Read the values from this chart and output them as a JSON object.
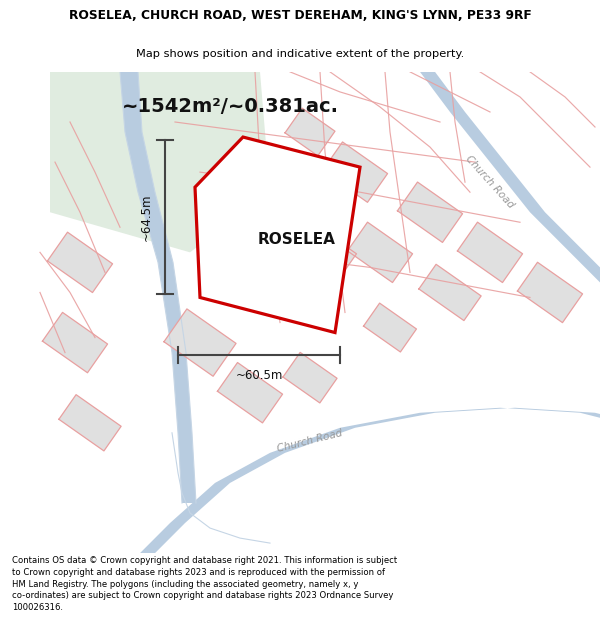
{
  "title_line1": "ROSELEA, CHURCH ROAD, WEST DEREHAM, KING'S LYNN, PE33 9RF",
  "title_line2": "Map shows position and indicative extent of the property.",
  "area_text": "~1542m²/~0.381ac.",
  "property_label": "ROSELEA",
  "dim_vertical": "~64.5m",
  "dim_horizontal": "~60.5m",
  "road_label": "Church Road",
  "road_label2": "Church Road",
  "footer_text": "Contains OS data © Crown copyright and database right 2021. This information is subject to Crown copyright and database rights 2023 and is reproduced with the permission of HM Land Registry. The polygons (including the associated geometry, namely x, y co-ordinates) are subject to Crown copyright and database rights 2023 Ordnance Survey 100026316.",
  "bg_color": "#ffffff",
  "property_color": "#cc0000",
  "road_color": "#b8cce0",
  "road_edge_color": "#c8d8e8",
  "plot_line_color": "#e8a0a0",
  "building_color": "#d8d8d8",
  "green_color": "#e0ece0",
  "dim_line_color": "#444444",
  "road_label_color": "#999999"
}
